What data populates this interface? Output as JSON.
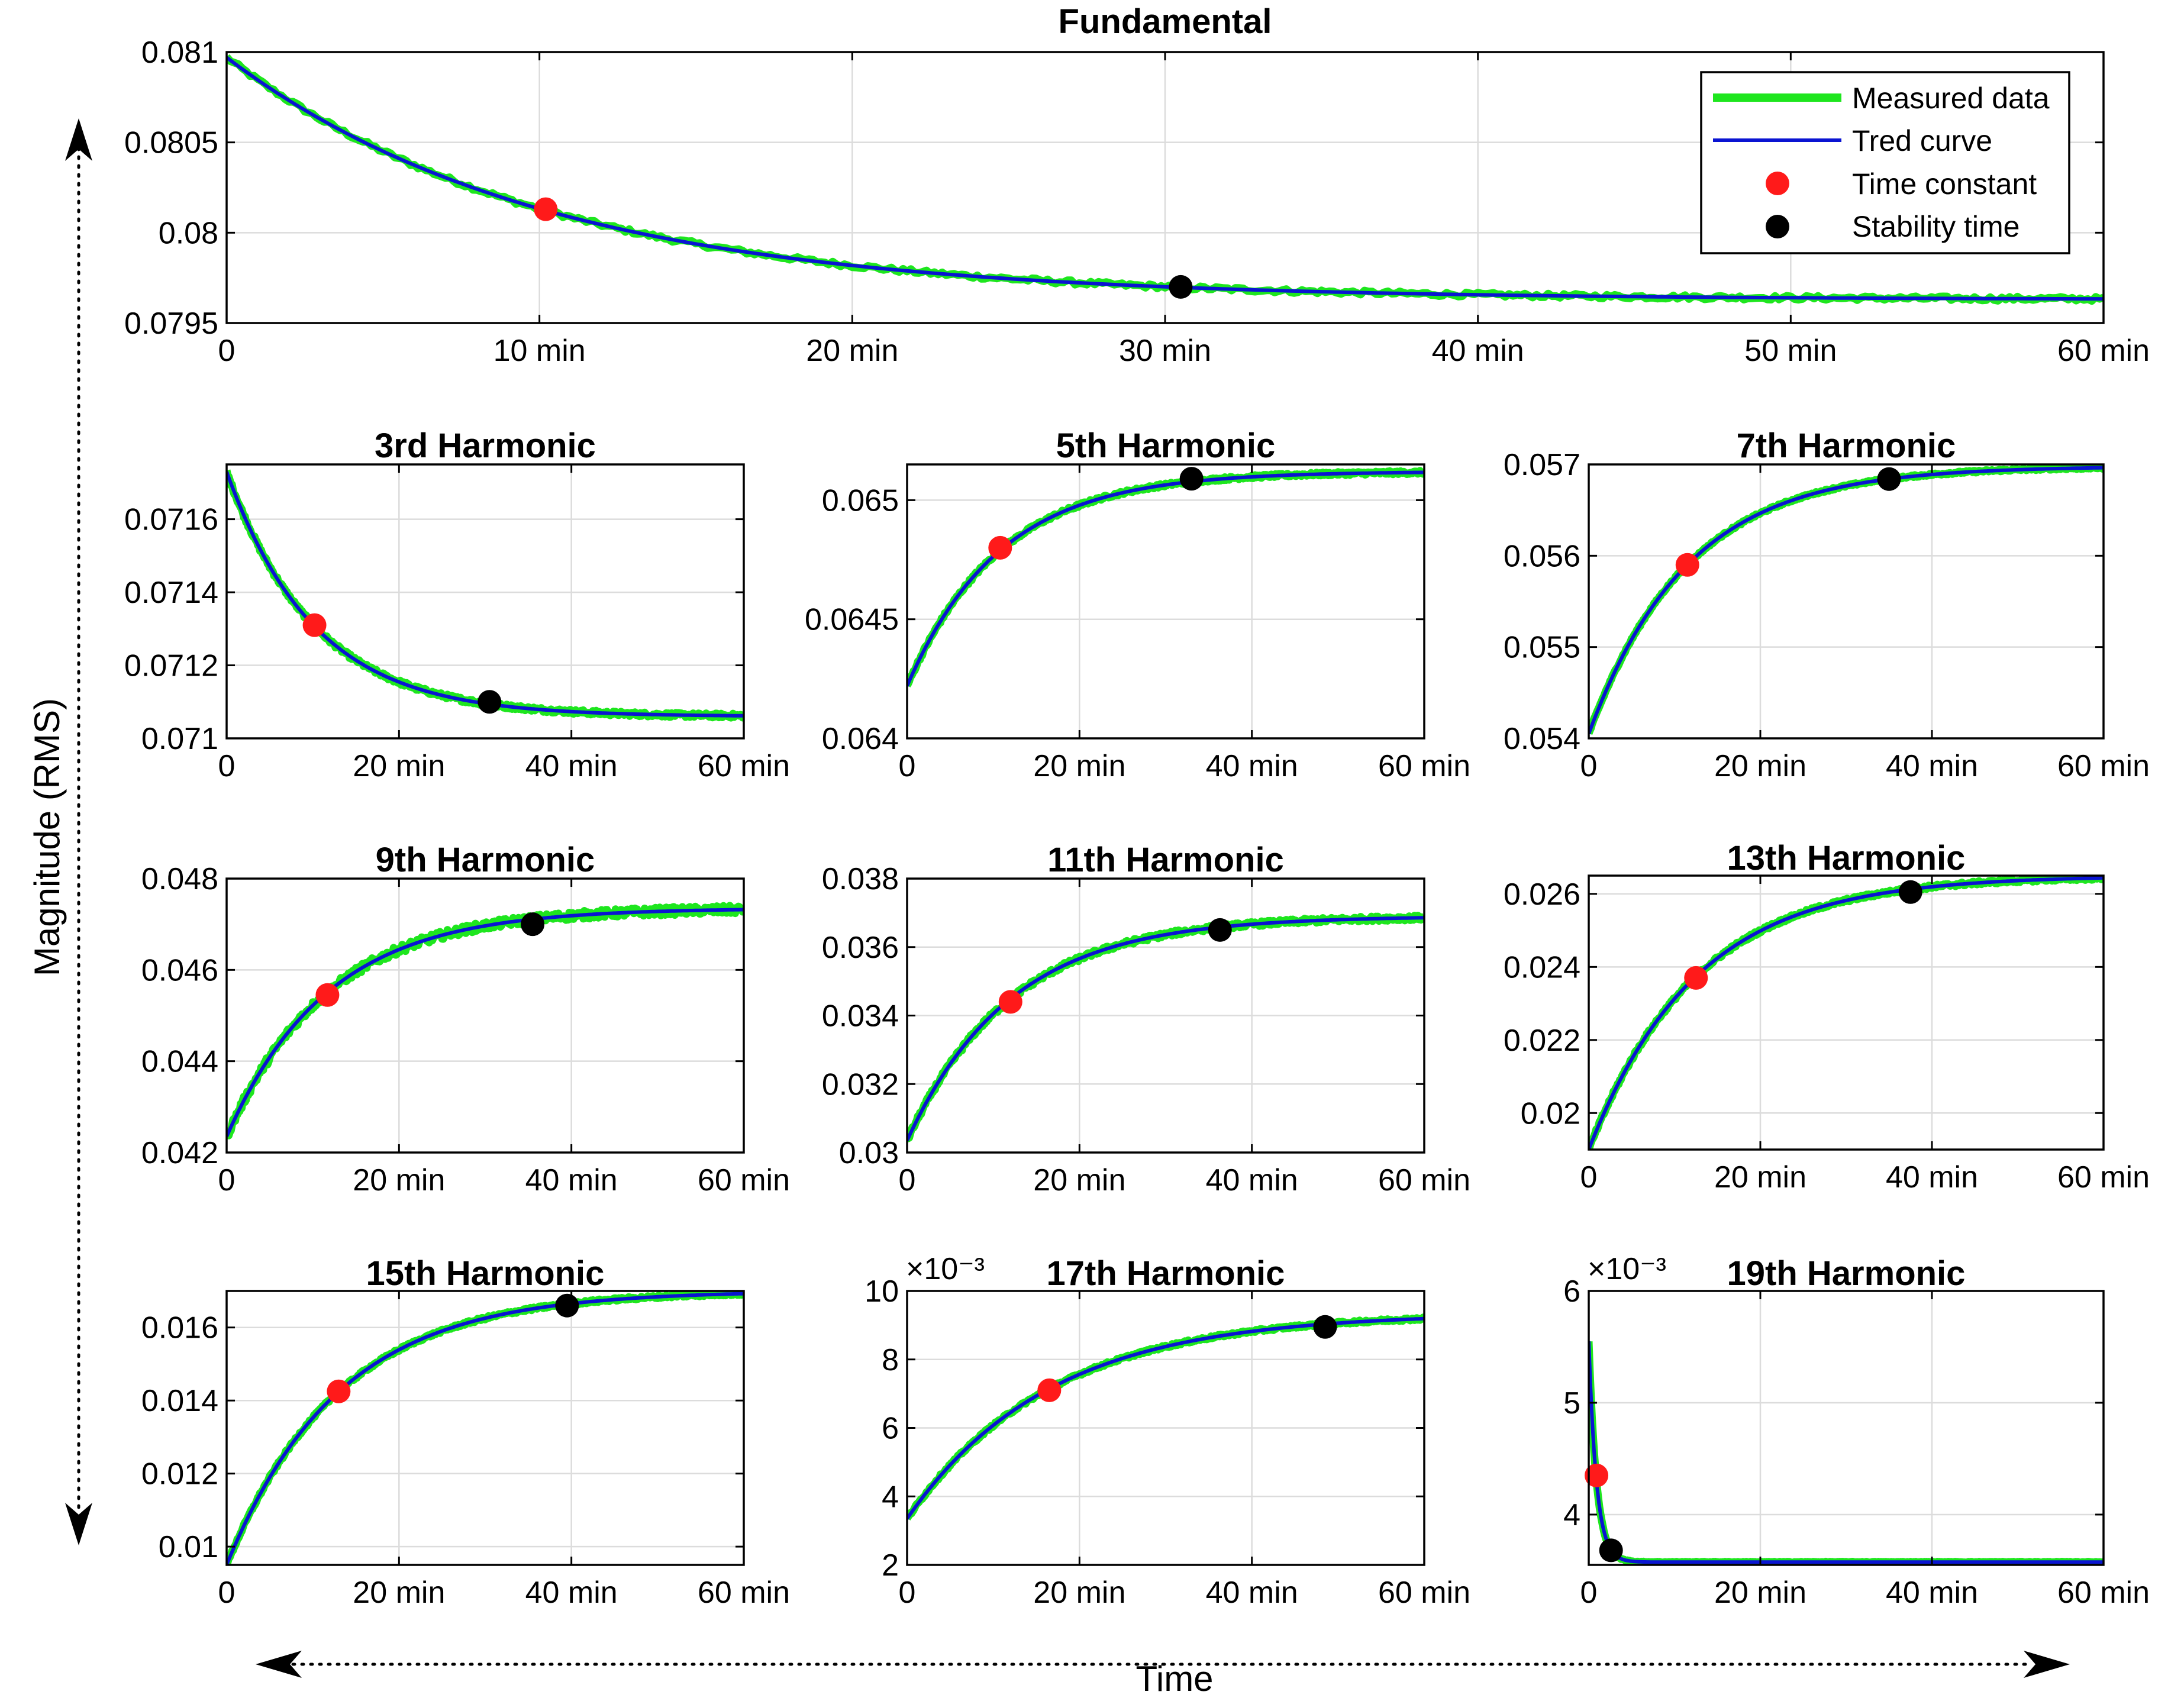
{
  "figure": {
    "y_axis_title": "Magnitude (RMS)",
    "x_axis_title": "Time",
    "legend": {
      "position": "top-right of Fundamental panel",
      "entries": [
        {
          "label": "Measured data",
          "kind": "line",
          "color": "#1ee61e"
        },
        {
          "label": "Tred curve",
          "kind": "line",
          "color": "#0a14d2"
        },
        {
          "label": "Time constant",
          "kind": "marker",
          "color": "#ff1a1a"
        },
        {
          "label": "Stability time",
          "kind": "marker",
          "color": "#000000"
        }
      ]
    },
    "colors": {
      "measured": "#1ee61e",
      "trend": "#0a14d2",
      "time_constant": "#ff1a1a",
      "stability": "#000000"
    }
  },
  "chart_data": [
    {
      "id": "fundamental",
      "type": "line",
      "title": "Fundamental",
      "x_unit": "min",
      "xlim": [
        0,
        60
      ],
      "x_ticks": [
        0,
        10,
        20,
        30,
        40,
        50,
        60
      ],
      "x_tick_labels": [
        "0",
        "10 min",
        "20 min",
        "30 min",
        "40 min",
        "50 min",
        "60 min"
      ],
      "ylim": [
        0.0795,
        0.081
      ],
      "y_ticks": [
        0.0795,
        0.08,
        0.0805,
        0.081
      ],
      "y_tick_labels": [
        "0.0795",
        "0.08",
        "0.0805",
        "0.081"
      ],
      "y_exponent": "",
      "trend": {
        "y0": 0.08097,
        "y_inf": 0.07963,
        "tau": 10.2
      },
      "noise": 1.2e-05,
      "time_constant": {
        "x": 10.2,
        "y": 0.08013
      },
      "stability_time": {
        "x": 30.5,
        "y": 0.0797
      }
    },
    {
      "id": "h3",
      "type": "line",
      "title": "3rd Harmonic",
      "x_unit": "min",
      "xlim": [
        0,
        60
      ],
      "x_ticks": [
        0,
        20,
        40,
        60
      ],
      "x_tick_labels": [
        "0",
        "20 min",
        "40 min",
        "60 min"
      ],
      "ylim": [
        0.071,
        0.07175
      ],
      "y_ticks": [
        0.071,
        0.0712,
        0.0714,
        0.0716
      ],
      "y_tick_labels": [
        "0.071",
        "0.0712",
        "0.0714",
        "0.0716"
      ],
      "y_exponent": "",
      "trend": {
        "y0": 0.07173,
        "y_inf": 0.07106,
        "tau": 10.2
      },
      "noise": 6e-06,
      "time_constant": {
        "x": 10.2,
        "y": 0.07131
      },
      "stability_time": {
        "x": 30.5,
        "y": 0.0711
      }
    },
    {
      "id": "h5",
      "type": "line",
      "title": "5th Harmonic",
      "x_unit": "min",
      "xlim": [
        0,
        60
      ],
      "x_ticks": [
        0,
        20,
        40,
        60
      ],
      "x_tick_labels": [
        "0",
        "20 min",
        "40 min",
        "60 min"
      ],
      "ylim": [
        0.064,
        0.06515
      ],
      "y_ticks": [
        0.064,
        0.0645,
        0.065
      ],
      "y_tick_labels": [
        "0.064",
        "0.0645",
        "0.065"
      ],
      "y_exponent": "",
      "trend": {
        "y0": 0.06422,
        "y_inf": 0.06512,
        "tau": 10.8
      },
      "noise": 7e-06,
      "time_constant": {
        "x": 10.8,
        "y": 0.0648
      },
      "stability_time": {
        "x": 33.0,
        "y": 0.06509
      }
    },
    {
      "id": "h7",
      "type": "line",
      "title": "7th Harmonic",
      "x_unit": "min",
      "xlim": [
        0,
        60
      ],
      "x_ticks": [
        0,
        20,
        40,
        60
      ],
      "x_tick_labels": [
        "0",
        "20 min",
        "40 min",
        "60 min"
      ],
      "ylim": [
        0.054,
        0.057
      ],
      "y_ticks": [
        0.054,
        0.055,
        0.056,
        0.057
      ],
      "y_tick_labels": [
        "0.054",
        "0.055",
        "0.056",
        "0.057"
      ],
      "y_exponent": "",
      "trend": {
        "y0": 0.05405,
        "y_inf": 0.05698,
        "tau": 11.5
      },
      "noise": 1.2e-05,
      "time_constant": {
        "x": 11.5,
        "y": 0.0559
      },
      "stability_time": {
        "x": 35.0,
        "y": 0.05684
      }
    },
    {
      "id": "h9",
      "type": "line",
      "title": "9th Harmonic",
      "x_unit": "min",
      "xlim": [
        0,
        60
      ],
      "x_ticks": [
        0,
        20,
        40,
        60
      ],
      "x_tick_labels": [
        "0",
        "20 min",
        "40 min",
        "60 min"
      ],
      "ylim": [
        0.042,
        0.048
      ],
      "y_ticks": [
        0.042,
        0.044,
        0.046,
        0.048
      ],
      "y_tick_labels": [
        "0.042",
        "0.044",
        "0.046",
        "0.048"
      ],
      "y_exponent": "",
      "trend": {
        "y0": 0.04235,
        "y_inf": 0.04735,
        "tau": 11.7
      },
      "noise": 9e-05,
      "time_constant": {
        "x": 11.7,
        "y": 0.04545
      },
      "stability_time": {
        "x": 35.5,
        "y": 0.047
      }
    },
    {
      "id": "h11",
      "type": "line",
      "title": "11th Harmonic",
      "x_unit": "min",
      "xlim": [
        0,
        60
      ],
      "x_ticks": [
        0,
        20,
        40,
        60
      ],
      "x_tick_labels": [
        "0",
        "20 min",
        "40 min",
        "60 min"
      ],
      "ylim": [
        0.03,
        0.038
      ],
      "y_ticks": [
        0.03,
        0.032,
        0.034,
        0.036,
        0.038
      ],
      "y_tick_labels": [
        "0.03",
        "0.032",
        "0.034",
        "0.036",
        "0.038"
      ],
      "y_exponent": "",
      "trend": {
        "y0": 0.03035,
        "y_inf": 0.0369,
        "tau": 12.0
      },
      "noise": 7e-05,
      "time_constant": {
        "x": 12.0,
        "y": 0.0344
      },
      "stability_time": {
        "x": 36.3,
        "y": 0.0365
      }
    },
    {
      "id": "h13",
      "type": "line",
      "title": "13th Harmonic",
      "x_unit": "min",
      "xlim": [
        0,
        60
      ],
      "x_ticks": [
        0,
        20,
        40,
        60
      ],
      "x_tick_labels": [
        "0",
        "20 min",
        "40 min",
        "60 min"
      ],
      "ylim": [
        0.019,
        0.0265
      ],
      "y_ticks": [
        0.02,
        0.022,
        0.024,
        0.026
      ],
      "y_tick_labels": [
        "0.02",
        "0.022",
        "0.024",
        "0.026"
      ],
      "y_exponent": "",
      "trend": {
        "y0": 0.019,
        "y_inf": 0.0265,
        "tau": 12.5
      },
      "noise": 5e-05,
      "time_constant": {
        "x": 12.5,
        "y": 0.0237
      },
      "stability_time": {
        "x": 37.5,
        "y": 0.02605
      }
    },
    {
      "id": "h15",
      "type": "line",
      "title": "15th Harmonic",
      "x_unit": "min",
      "xlim": [
        0,
        60
      ],
      "x_ticks": [
        0,
        20,
        40,
        60
      ],
      "x_tick_labels": [
        "0",
        "20 min",
        "40 min",
        "60 min"
      ],
      "ylim": [
        0.0095,
        0.017
      ],
      "y_ticks": [
        0.01,
        0.012,
        0.014,
        0.016
      ],
      "y_tick_labels": [
        "0.01",
        "0.012",
        "0.014",
        "0.016"
      ],
      "y_exponent": "",
      "trend": {
        "y0": 0.0095,
        "y_inf": 0.017,
        "tau": 13.0
      },
      "noise": 4e-05,
      "time_constant": {
        "x": 13.0,
        "y": 0.01425
      },
      "stability_time": {
        "x": 39.5,
        "y": 0.0166
      }
    },
    {
      "id": "h17",
      "type": "line",
      "title": "17th Harmonic",
      "x_unit": "min",
      "xlim": [
        0,
        60
      ],
      "x_ticks": [
        0,
        20,
        40,
        60
      ],
      "x_tick_labels": [
        "0",
        "20 min",
        "40 min",
        "60 min"
      ],
      "ylim": [
        2,
        10
      ],
      "y_ticks": [
        2,
        4,
        6,
        8,
        10
      ],
      "y_tick_labels": [
        "2",
        "4",
        "6",
        "8",
        "10"
      ],
      "y_exponent": "×10⁻³",
      "trend": {
        "y0": 3.35,
        "y_inf": 9.35,
        "tau": 16.5
      },
      "noise": 0.04,
      "time_constant": {
        "x": 16.5,
        "y": 7.1
      },
      "stability_time": {
        "x": 48.5,
        "y": 8.95
      }
    },
    {
      "id": "h19",
      "type": "line",
      "title": "19th Harmonic",
      "x_unit": "min",
      "xlim": [
        0,
        60
      ],
      "x_ticks": [
        0,
        20,
        40,
        60
      ],
      "x_tick_labels": [
        "0",
        "20 min",
        "40 min",
        "60 min"
      ],
      "ylim": [
        3.55,
        6
      ],
      "y_ticks": [
        4,
        5,
        6
      ],
      "y_tick_labels": [
        "4",
        "5",
        "6"
      ],
      "y_exponent": "×10⁻³",
      "trend": {
        "y0": 5.55,
        "y_inf": 3.575,
        "tau": 0.9
      },
      "noise": 0.004,
      "time_constant": {
        "x": 0.9,
        "y": 4.35
      },
      "stability_time": {
        "x": 2.6,
        "y": 3.68
      }
    }
  ]
}
